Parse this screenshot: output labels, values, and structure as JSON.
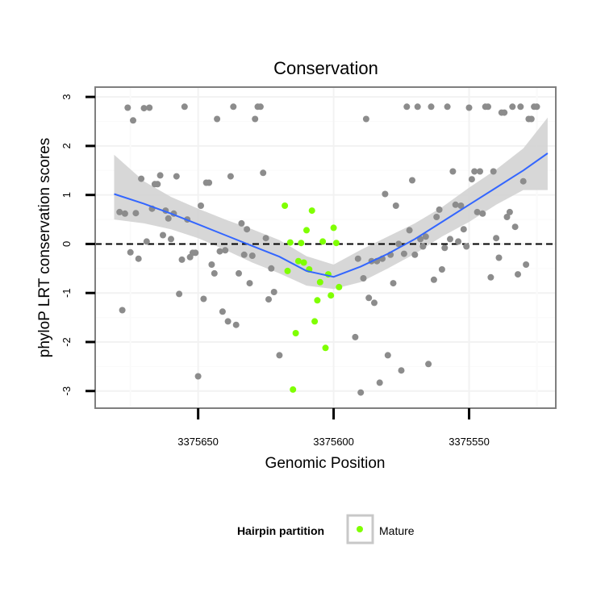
{
  "chart_data": {
    "type": "scatter",
    "title": "Conservation",
    "xlabel": "Genomic Position",
    "ylabel": "phyloP LRT conservation scores",
    "xlim": [
      3375688,
      3375518
    ],
    "ylim": [
      -3.35,
      3.2
    ],
    "x_reversed": true,
    "x_ticks": [
      3375650,
      3375600,
      3375550
    ],
    "x_tick_labels": [
      "3375650",
      "3375600",
      "3375550"
    ],
    "y_ticks": [
      -3,
      -2,
      -1,
      0,
      1,
      2,
      3
    ],
    "y_tick_labels": [
      "-3",
      "-2",
      "-1",
      "0",
      "1",
      "2",
      "3"
    ],
    "grid": true,
    "reference_line": {
      "y": 0,
      "style": "dashed",
      "color": "#000000"
    },
    "legend": {
      "title": "Hairpin partition",
      "placement": "bottom",
      "entries": [
        {
          "label": "Mature",
          "color": "#7fff00"
        }
      ]
    },
    "colors": {
      "background_points": "#8c8c8c",
      "mature_points": "#7fff00",
      "smooth_line": "#3366ff",
      "confidence_band": "#d3d3d3"
    },
    "series": [
      {
        "color": "#8c8c8c",
        "points": [
          [
            3375679,
            0.65
          ],
          [
            3375678,
            -1.35
          ],
          [
            3375677,
            0.62
          ],
          [
            3375676,
            2.78
          ],
          [
            3375675,
            -0.17
          ],
          [
            3375674,
            2.52
          ],
          [
            3375673,
            0.63
          ],
          [
            3375672,
            -0.3
          ],
          [
            3375671,
            1.33
          ],
          [
            3375670,
            2.77
          ],
          [
            3375669,
            0.05
          ],
          [
            3375668,
            2.78
          ],
          [
            3375667,
            0.72
          ],
          [
            3375666,
            1.22
          ],
          [
            3375665,
            1.22
          ],
          [
            3375664,
            1.4
          ],
          [
            3375663,
            0.18
          ],
          [
            3375662,
            0.68
          ],
          [
            3375661,
            0.52
          ],
          [
            3375660,
            0.1
          ],
          [
            3375659,
            0.62
          ],
          [
            3375658,
            1.38
          ],
          [
            3375657,
            -1.02
          ],
          [
            3375656,
            -0.32
          ],
          [
            3375655,
            2.8
          ],
          [
            3375654,
            0.5
          ],
          [
            3375653,
            -0.27
          ],
          [
            3375652,
            -0.18
          ],
          [
            3375651,
            -0.18
          ],
          [
            3375650,
            -2.7
          ],
          [
            3375649,
            0.78
          ],
          [
            3375648,
            -1.12
          ],
          [
            3375647,
            1.25
          ],
          [
            3375646,
            1.25
          ],
          [
            3375645,
            -0.42
          ],
          [
            3375644,
            -0.6
          ],
          [
            3375643,
            2.55
          ],
          [
            3375642,
            -0.15
          ],
          [
            3375641,
            -1.38
          ],
          [
            3375640,
            -0.13
          ],
          [
            3375639,
            -1.58
          ],
          [
            3375638,
            1.38
          ],
          [
            3375637,
            2.8
          ],
          [
            3375636,
            -1.65
          ],
          [
            3375635,
            -0.6
          ],
          [
            3375634,
            0.42
          ],
          [
            3375633,
            -0.22
          ],
          [
            3375632,
            0.3
          ],
          [
            3375631,
            -0.8
          ],
          [
            3375630,
            -0.24
          ],
          [
            3375629,
            2.55
          ],
          [
            3375628,
            2.8
          ],
          [
            3375627,
            2.8
          ],
          [
            3375626,
            1.45
          ],
          [
            3375625,
            0.12
          ],
          [
            3375624,
            -1.13
          ],
          [
            3375623,
            -0.5
          ],
          [
            3375622,
            -0.98
          ],
          [
            3375620,
            -2.27
          ],
          [
            3375592,
            -1.9
          ],
          [
            3375591,
            -0.3
          ],
          [
            3375590,
            -3.03
          ],
          [
            3375589,
            -0.7
          ],
          [
            3375588,
            2.55
          ],
          [
            3375587,
            -1.1
          ],
          [
            3375586,
            -0.35
          ],
          [
            3375585,
            -1.2
          ],
          [
            3375584,
            -0.35
          ],
          [
            3375583,
            -2.83
          ],
          [
            3375582,
            -0.3
          ],
          [
            3375581,
            1.02
          ],
          [
            3375580,
            -2.27
          ],
          [
            3375579,
            -0.22
          ],
          [
            3375578,
            -0.8
          ],
          [
            3375577,
            0.78
          ],
          [
            3375576,
            0.0
          ],
          [
            3375575,
            -2.58
          ],
          [
            3375574,
            -0.2
          ],
          [
            3375573,
            2.8
          ],
          [
            3375572,
            0.28
          ],
          [
            3375571,
            1.3
          ],
          [
            3375570,
            -0.22
          ],
          [
            3375569,
            2.8
          ],
          [
            3375568,
            0.1
          ],
          [
            3375567,
            -0.05
          ],
          [
            3375566,
            0.15
          ],
          [
            3375565,
            -2.45
          ],
          [
            3375564,
            2.8
          ],
          [
            3375563,
            -0.73
          ],
          [
            3375562,
            0.55
          ],
          [
            3375561,
            0.7
          ],
          [
            3375560,
            -0.52
          ],
          [
            3375559,
            -0.08
          ],
          [
            3375558,
            2.8
          ],
          [
            3375557,
            0.1
          ],
          [
            3375556,
            1.48
          ],
          [
            3375555,
            0.8
          ],
          [
            3375554,
            0.05
          ],
          [
            3375553,
            0.78
          ],
          [
            3375552,
            0.3
          ],
          [
            3375551,
            -0.05
          ],
          [
            3375550,
            2.78
          ],
          [
            3375549,
            1.32
          ],
          [
            3375548,
            1.48
          ],
          [
            3375547,
            0.65
          ],
          [
            3375546,
            1.48
          ],
          [
            3375545,
            0.62
          ],
          [
            3375544,
            2.8
          ],
          [
            3375543,
            2.8
          ],
          [
            3375542,
            -0.68
          ],
          [
            3375541,
            1.48
          ],
          [
            3375540,
            0.12
          ],
          [
            3375539,
            -0.28
          ],
          [
            3375538,
            2.68
          ],
          [
            3375537,
            2.68
          ],
          [
            3375536,
            0.55
          ],
          [
            3375535,
            0.65
          ],
          [
            3375534,
            2.8
          ],
          [
            3375533,
            0.35
          ],
          [
            3375532,
            -0.62
          ],
          [
            3375531,
            2.8
          ],
          [
            3375530,
            1.28
          ],
          [
            3375529,
            -0.42
          ],
          [
            3375528,
            2.55
          ],
          [
            3375527,
            2.55
          ],
          [
            3375526,
            2.8
          ],
          [
            3375525,
            2.8
          ]
        ]
      },
      {
        "name": "Mature",
        "color": "#7fff00",
        "points": [
          [
            3375618,
            0.78
          ],
          [
            3375617,
            -0.55
          ],
          [
            3375616,
            0.03
          ],
          [
            3375615,
            -2.97
          ],
          [
            3375614,
            -1.82
          ],
          [
            3375613,
            -0.35
          ],
          [
            3375612,
            0.02
          ],
          [
            3375611,
            -0.38
          ],
          [
            3375610,
            0.28
          ],
          [
            3375609,
            -0.52
          ],
          [
            3375608,
            0.68
          ],
          [
            3375607,
            -1.58
          ],
          [
            3375606,
            -1.15
          ],
          [
            3375605,
            -0.78
          ],
          [
            3375604,
            0.05
          ],
          [
            3375603,
            -2.12
          ],
          [
            3375602,
            -0.62
          ],
          [
            3375601,
            -1.05
          ],
          [
            3375600,
            0.33
          ],
          [
            3375599,
            0.02
          ],
          [
            3375598,
            -0.88
          ]
        ]
      }
    ],
    "smooth": {
      "color": "#3366ff",
      "x": [
        3375681,
        3375670,
        3375660,
        3375650,
        3375640,
        3375630,
        3375620,
        3375610,
        3375600,
        3375590,
        3375580,
        3375570,
        3375560,
        3375550,
        3375540,
        3375530,
        3375521
      ],
      "y": [
        1.02,
        0.82,
        0.62,
        0.4,
        0.18,
        -0.04,
        -0.26,
        -0.55,
        -0.67,
        -0.46,
        -0.2,
        0.1,
        0.45,
        0.8,
        1.15,
        1.5,
        1.85
      ],
      "lower": [
        0.5,
        0.42,
        0.3,
        0.12,
        -0.12,
        -0.38,
        -0.6,
        -0.85,
        -0.92,
        -0.78,
        -0.5,
        -0.2,
        0.15,
        0.45,
        0.8,
        1.1,
        1.1
      ],
      "upper": [
        1.82,
        1.28,
        0.96,
        0.72,
        0.5,
        0.3,
        0.08,
        -0.25,
        -0.42,
        -0.12,
        0.15,
        0.42,
        0.75,
        1.15,
        1.52,
        1.95,
        2.58
      ]
    }
  }
}
